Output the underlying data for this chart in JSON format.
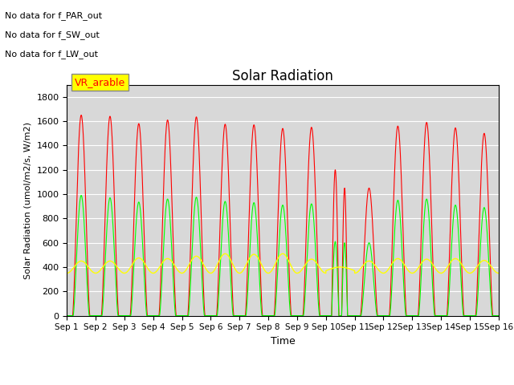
{
  "title": "Solar Radiation",
  "ylabel": "Solar Radiation (umol/m2/s, W/m2)",
  "xlabel": "Time",
  "ylim": [
    0,
    1900
  ],
  "yticks": [
    0,
    200,
    400,
    600,
    800,
    1000,
    1200,
    1400,
    1600,
    1800
  ],
  "bg_color": "#d8d8d8",
  "fig_bg": "#ffffff",
  "annotations": [
    "No data for f_PAR_out",
    "No data for f_SW_out",
    "No data for f_LW_out"
  ],
  "vr_label": "VR_arable",
  "days": 15,
  "par_peaks": [
    1650,
    1640,
    1580,
    1610,
    1635,
    1575,
    1570,
    1540,
    1550,
    1200,
    1050,
    1560,
    1590,
    1545,
    1500
  ],
  "sw_peaks": [
    990,
    970,
    935,
    960,
    975,
    940,
    930,
    910,
    920,
    610,
    600,
    950,
    960,
    910,
    890
  ],
  "lw_base": 350,
  "lw_peaks": [
    450,
    450,
    475,
    470,
    490,
    510,
    505,
    510,
    465,
    400,
    450,
    470,
    465,
    470,
    455
  ]
}
